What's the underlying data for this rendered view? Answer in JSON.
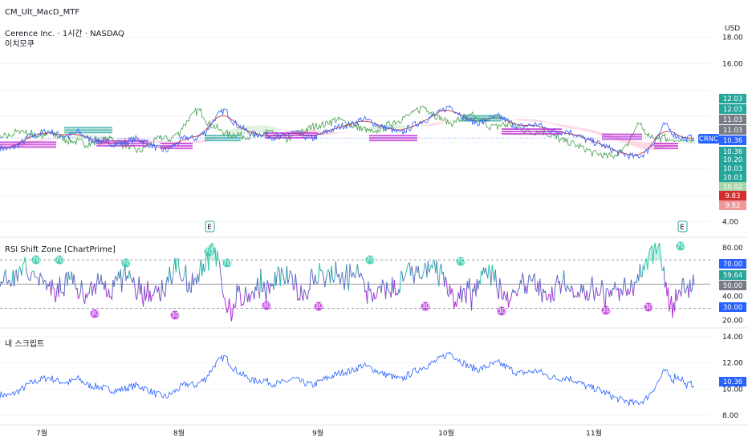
{
  "header": {
    "script_title": "CM_Ult_MacD_MTF",
    "symbol_line": "Cerence Inc. · 1시간 · NASDAQ",
    "ichimoku_label": "이치모쿠",
    "currency": "USD"
  },
  "colors": {
    "price_line": "#2962ff",
    "green_line": "#43a047",
    "red_line": "#d32f2f",
    "cloud_red": "#f8bbd0",
    "cloud_green": "#c8e6c9",
    "teal": "#26a69a",
    "magenta": "#c026d3",
    "rsi_teal": "#26c6a6",
    "rsi_purple": "#b42fd6"
  },
  "chart_data": [
    {
      "type": "line",
      "name": "price-pane",
      "x_ticks": [
        "7월",
        "8월",
        "9월",
        "10월",
        "11월"
      ],
      "y_ticks": [
        18.0,
        16.0,
        14.0,
        12.0,
        10.0,
        8.0,
        6.0,
        4.0
      ],
      "y_tick_labels": [
        "18.00",
        "16.00",
        "4.00"
      ],
      "ylim": [
        3.0,
        19.5
      ],
      "price_series": [
        9.6,
        9.5,
        9.9,
        10.4,
        10.7,
        10.9,
        10.6,
        10.5,
        10.8,
        10.3,
        10.2,
        10.0,
        9.9,
        10.1,
        10.3,
        10.0,
        9.6,
        9.4,
        9.9,
        10.4,
        10.3,
        10.8,
        11.9,
        12.5,
        11.5,
        11.0,
        10.6,
        10.7,
        10.4,
        10.5,
        10.8,
        10.5,
        10.3,
        10.7,
        11.0,
        11.3,
        11.4,
        11.8,
        11.6,
        11.2,
        11.0,
        10.7,
        11.2,
        11.6,
        11.9,
        12.3,
        12.8,
        12.2,
        11.7,
        11.5,
        11.8,
        12.0,
        11.6,
        11.2,
        11.3,
        11.4,
        11.0,
        10.8,
        10.9,
        10.6,
        10.2,
        10.0,
        9.7,
        9.3,
        9.1,
        8.9,
        9.2,
        10.2,
        11.4,
        10.6,
        10.3,
        10.4
      ],
      "value_labels": [
        {
          "text": "12.03",
          "color": "#26a69a"
        },
        {
          "text": "12.03",
          "color": "#26a69a"
        },
        {
          "text": "11.03",
          "color": "#787b86"
        },
        {
          "text": "11.03",
          "color": "#787b86"
        },
        {
          "text": "10.36",
          "color": "#2962ff"
        },
        {
          "text": "10.36",
          "color": "#26a69a"
        },
        {
          "text": "10.20",
          "color": "#26a69a"
        },
        {
          "text": "10.03",
          "color": "#26a69a"
        },
        {
          "text": "10.03",
          "color": "#26a69a"
        },
        {
          "text": "10.02",
          "color": "#a5d6a7"
        },
        {
          "text": "9.83",
          "color": "#d32f2f"
        },
        {
          "text": "9.82",
          "color": "#ef9a9a"
        }
      ],
      "symbol_tag": "CRNC",
      "markers": [
        "E",
        "E"
      ]
    },
    {
      "type": "line",
      "name": "rsi-pane",
      "title": "RSI Shift Zone [ChartPrime]",
      "ylim": [
        15,
        88
      ],
      "y_ticks": [
        80.0,
        40.0,
        20.0
      ],
      "y_tick_labels": [
        "80.00",
        "40.00",
        "20.00"
      ],
      "levels": [
        70,
        50,
        30
      ],
      "value_labels": [
        {
          "text": "70.00",
          "color": "#2962ff"
        },
        {
          "text": "59.64",
          "color": "#26a69a"
        },
        {
          "text": "50.00",
          "color": "#787b86"
        },
        {
          "text": "30.00",
          "color": "#2962ff"
        }
      ],
      "zone_badges": [
        "70",
        "30"
      ]
    },
    {
      "type": "line",
      "name": "my-script-pane",
      "title": "내 스크립트",
      "ylim": [
        7.4,
        14.6
      ],
      "y_ticks": [
        14.0,
        12.0,
        10.0,
        8.0
      ],
      "y_tick_labels": [
        "14.00",
        "12.00",
        "10.00",
        "8.00"
      ],
      "value_label": {
        "text": "10.36",
        "color": "#2962ff"
      }
    }
  ]
}
